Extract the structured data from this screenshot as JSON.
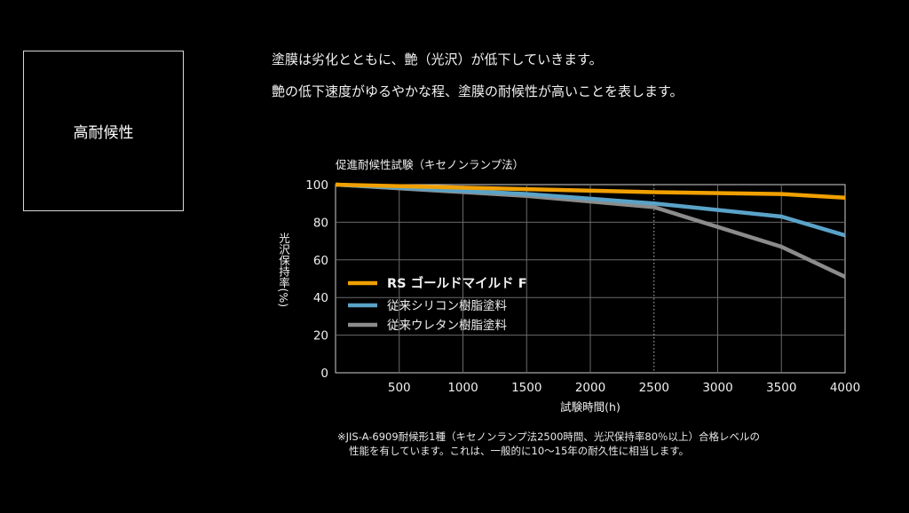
{
  "side_label": "高耐候性",
  "description": {
    "line1": "塗膜は劣化とともに、艶（光沢）が低下していきます。",
    "line2": "艶の低下速度がゆるやかな程、塗膜の耐候性が高いことを表します。"
  },
  "note": {
    "line1": "※JIS-A-6909耐候形1種（キセノンランプ法2500時間、光沢保持率80％以上）合格レベルの",
    "line2": "性能を有しています。これは、一般的に10〜15年の耐久性に相当します。"
  },
  "chart_data": {
    "type": "line",
    "title": "促進耐候性試験（キセノンランプ法）",
    "xlabel": "試験時間(h)",
    "ylabel": "光沢保持率(%)",
    "xlim": [
      0,
      4000
    ],
    "ylim": [
      0,
      100
    ],
    "x_ticks": [
      500,
      1000,
      1500,
      2000,
      2500,
      3000,
      3500,
      4000
    ],
    "y_ticks": [
      0,
      20,
      40,
      60,
      80,
      100
    ],
    "grid": true,
    "reference_line_x": 2500,
    "legend_position": "middle-left",
    "series": [
      {
        "name": "RS ゴールドマイルド F",
        "color": "#f0a000",
        "x": [
          0,
          2500,
          3500,
          4000
        ],
        "values": [
          100,
          96,
          95,
          93
        ]
      },
      {
        "name": "従来シリコン樹脂塗料",
        "color": "#5aa3c8",
        "x": [
          0,
          1500,
          2500,
          3500,
          4000
        ],
        "values": [
          100,
          95,
          90,
          83,
          73
        ]
      },
      {
        "name": "従来ウレタン樹脂塗料",
        "color": "#8c8c8c",
        "x": [
          0,
          1500,
          2500,
          3500,
          4000
        ],
        "values": [
          100,
          94,
          88,
          67,
          51
        ]
      }
    ]
  }
}
